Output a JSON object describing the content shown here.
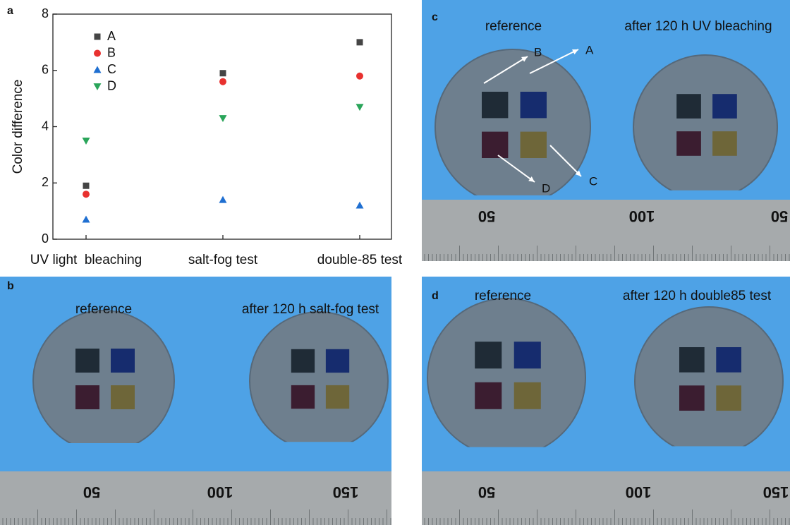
{
  "chart_data": {
    "type": "scatter",
    "panel_label": "a",
    "y_label": "Color difference",
    "categories": [
      "UV light  bleaching",
      "salt-fog test",
      "double-85 test"
    ],
    "series": [
      {
        "name": "A",
        "color": "#454545",
        "marker": "square",
        "values": [
          1.9,
          5.9,
          7.0
        ]
      },
      {
        "name": "B",
        "color": "#e8312f",
        "marker": "circle",
        "values": [
          1.6,
          5.6,
          5.8
        ]
      },
      {
        "name": "C",
        "color": "#1f6fd1",
        "marker": "triangle-up",
        "values": [
          0.7,
          1.4,
          1.2
        ]
      },
      {
        "name": "D",
        "color": "#2aa55a",
        "marker": "triangle-down",
        "values": [
          3.5,
          4.3,
          4.7
        ]
      }
    ],
    "ylim": [
      0,
      8
    ],
    "yticks": [
      0,
      2,
      4,
      6,
      8
    ],
    "grid": false,
    "legend": "upper left"
  },
  "photos": [
    {
      "label": "b",
      "captions": [
        "reference",
        "after 120 h salt-fog test"
      ],
      "ruler": [
        "50",
        "100",
        "150"
      ]
    },
    {
      "label": "c",
      "captions": [
        "reference",
        "after 120 h UV bleaching"
      ],
      "ruler": [
        "50",
        "100",
        "50"
      ],
      "arrow_labels": [
        "A",
        "B",
        "C",
        "D"
      ]
    },
    {
      "label": "d",
      "captions": [
        "reference",
        "after 120 h double85 test"
      ],
      "ruler": [
        "50",
        "100",
        "150"
      ]
    }
  ]
}
